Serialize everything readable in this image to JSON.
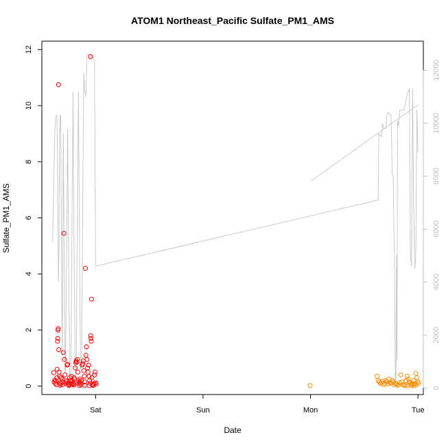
{
  "chart_data": {
    "type": "scatter",
    "title": "ATOM1 Northeast_Pacific Sulfate_PM1_AMS",
    "xlabel": "Date",
    "ylabel": "Sulfate_PM1_AMS",
    "xlim": [
      -0.5,
      3.05
    ],
    "ylim": [
      -0.3,
      12.3
    ],
    "y2lim": [
      -250,
      13100
    ],
    "x_ticks": [
      {
        "label": "Sat",
        "value": 0
      },
      {
        "label": "Sun",
        "value": 1
      },
      {
        "label": "Mon",
        "value": 2
      },
      {
        "label": "Tue",
        "value": 3
      }
    ],
    "y_ticks": [
      0,
      2,
      4,
      6,
      8,
      10,
      12
    ],
    "y2_ticks": [
      0,
      2000,
      4000,
      6000,
      8000,
      10000,
      12000
    ],
    "colors": {
      "series1": "#ff0000",
      "series2": "#ff8c00",
      "altitude": "#c8c8c8"
    },
    "series": [
      {
        "color": "#ff0000",
        "points": [
          [
            -0.39,
            0.48
          ],
          [
            -0.385,
            0.15
          ],
          [
            -0.38,
            0.22
          ],
          [
            -0.375,
            0.1
          ],
          [
            -0.37,
            0.18
          ],
          [
            -0.365,
            0.05
          ],
          [
            -0.36,
            0.3
          ],
          [
            -0.358,
            0.6
          ],
          [
            -0.355,
            1.6
          ],
          [
            -0.352,
            1.7
          ],
          [
            -0.35,
            2.0
          ],
          [
            -0.347,
            2.05
          ],
          [
            -0.345,
            10.75
          ],
          [
            -0.342,
            1.3
          ],
          [
            -0.34,
            0.5
          ],
          [
            -0.335,
            0.35
          ],
          [
            -0.33,
            0.12
          ],
          [
            -0.325,
            0.08
          ],
          [
            -0.32,
            0.3
          ],
          [
            -0.315,
            0.15
          ],
          [
            -0.31,
            0.25
          ],
          [
            -0.305,
            0.05
          ],
          [
            -0.3,
            1.2
          ],
          [
            -0.295,
            5.45
          ],
          [
            -0.29,
            0.95
          ],
          [
            -0.285,
            0.4
          ],
          [
            -0.28,
            0.1
          ],
          [
            -0.275,
            0.2
          ],
          [
            -0.27,
            0.15
          ],
          [
            -0.265,
            0.75
          ],
          [
            -0.26,
            0.78
          ],
          [
            -0.255,
            0.08
          ],
          [
            -0.25,
            0.12
          ],
          [
            -0.245,
            0.05
          ],
          [
            -0.24,
            0.3
          ],
          [
            -0.235,
            0.2
          ],
          [
            -0.23,
            0.1
          ],
          [
            -0.225,
            0.35
          ],
          [
            -0.22,
            0.05
          ],
          [
            -0.215,
            0.18
          ],
          [
            -0.21,
            0.1
          ],
          [
            -0.205,
            0.08
          ],
          [
            -0.2,
            0.3
          ],
          [
            -0.195,
            0.25
          ],
          [
            -0.19,
            0.65
          ],
          [
            -0.185,
            0.85
          ],
          [
            -0.18,
            0.9
          ],
          [
            -0.175,
            0.85
          ],
          [
            -0.17,
            0.95
          ],
          [
            -0.165,
            0.5
          ],
          [
            -0.16,
            0.2
          ],
          [
            -0.155,
            0.1
          ],
          [
            -0.15,
            0.15
          ],
          [
            -0.145,
            0.25
          ],
          [
            -0.14,
            0.1
          ],
          [
            -0.135,
            0.05
          ],
          [
            -0.13,
            0.2
          ],
          [
            -0.125,
            0.75
          ],
          [
            -0.12,
            0.8
          ],
          [
            -0.115,
            0.9
          ],
          [
            -0.11,
            0.55
          ],
          [
            -0.105,
            0.35
          ],
          [
            -0.1,
            0.15
          ],
          [
            -0.095,
            4.2
          ],
          [
            -0.09,
            1.1
          ],
          [
            -0.085,
            1.4
          ],
          [
            -0.08,
            0.95
          ],
          [
            -0.075,
            0.65
          ],
          [
            -0.07,
            0.5
          ],
          [
            -0.065,
            0.75
          ],
          [
            -0.06,
            0.35
          ],
          [
            -0.055,
            0.2
          ],
          [
            -0.05,
            0.1
          ],
          [
            -0.047,
            11.75
          ],
          [
            -0.045,
            1.8
          ],
          [
            -0.043,
            1.7
          ],
          [
            -0.04,
            1.6
          ],
          [
            -0.038,
            3.1
          ],
          [
            -0.035,
            0.3
          ],
          [
            -0.03,
            0.05
          ],
          [
            -0.025,
            0.02
          ],
          [
            -0.02,
            0.05
          ],
          [
            -0.015,
            0.1
          ],
          [
            -0.01,
            0.4
          ],
          [
            -0.005,
            0.5
          ],
          [
            0.0,
            0.12
          ],
          [
            0.005,
            0.08
          ],
          [
            -0.33,
            0.03
          ],
          [
            -0.25,
            0.02
          ],
          [
            -0.2,
            0.04
          ],
          [
            -0.15,
            0.02
          ],
          [
            -0.1,
            0.03
          ],
          [
            -0.06,
            0.02
          ]
        ]
      },
      {
        "color": "#ff8c00",
        "points": [
          [
            1.995,
            0.02
          ],
          [
            2.62,
            0.35
          ],
          [
            2.63,
            0.2
          ],
          [
            2.64,
            0.15
          ],
          [
            2.65,
            0.1
          ],
          [
            2.66,
            0.12
          ],
          [
            2.67,
            0.18
          ],
          [
            2.68,
            0.05
          ],
          [
            2.69,
            0.1
          ],
          [
            2.7,
            0.2
          ],
          [
            2.71,
            0.15
          ],
          [
            2.72,
            0.08
          ],
          [
            2.73,
            0.25
          ],
          [
            2.74,
            0.12
          ],
          [
            2.75,
            0.1
          ],
          [
            2.76,
            0.2
          ],
          [
            2.77,
            0.15
          ],
          [
            2.78,
            0.05
          ],
          [
            2.79,
            0.1
          ],
          [
            2.8,
            0.08
          ],
          [
            2.81,
            0.03
          ],
          [
            2.82,
            0.05
          ],
          [
            2.83,
            0.12
          ],
          [
            2.84,
            0.4
          ],
          [
            2.85,
            0.15
          ],
          [
            2.86,
            0.05
          ],
          [
            2.87,
            0.03
          ],
          [
            2.88,
            0.02
          ],
          [
            2.89,
            0.2
          ],
          [
            2.9,
            0.35
          ],
          [
            2.91,
            0.25
          ],
          [
            2.92,
            0.15
          ],
          [
            2.93,
            0.05
          ],
          [
            2.94,
            0.1
          ],
          [
            2.95,
            0.08
          ],
          [
            2.96,
            0.2
          ],
          [
            2.97,
            0.1
          ],
          [
            2.98,
            0.45
          ],
          [
            2.99,
            0.3
          ],
          [
            3.0,
            0.15
          ],
          [
            3.005,
            0.1
          ],
          [
            2.985,
            0.05
          ],
          [
            2.965,
            0.02
          ],
          [
            2.945,
            0.03
          ],
          [
            2.925,
            0.12
          ],
          [
            2.905,
            0.02
          ]
        ]
      }
    ],
    "altitude_series": {
      "color": "#c8c8c8",
      "points": [
        [
          -0.4,
          5500
        ],
        [
          -0.38,
          9600
        ],
        [
          -0.37,
          10300
        ],
        [
          -0.36,
          10300
        ],
        [
          -0.355,
          9000
        ],
        [
          -0.35,
          6000
        ],
        [
          -0.345,
          4000
        ],
        [
          -0.34,
          5500
        ],
        [
          -0.335,
          9500
        ],
        [
          -0.33,
          10300
        ],
        [
          -0.325,
          10300
        ],
        [
          -0.32,
          7000
        ],
        [
          -0.315,
          3500
        ],
        [
          -0.31,
          1200
        ],
        [
          -0.305,
          5000
        ],
        [
          -0.3,
          9600
        ],
        [
          -0.29,
          3800
        ],
        [
          -0.285,
          600
        ],
        [
          -0.28,
          700
        ],
        [
          -0.27,
          5000
        ],
        [
          -0.26,
          9800
        ],
        [
          -0.25,
          4200
        ],
        [
          -0.24,
          500
        ],
        [
          -0.23,
          600
        ],
        [
          -0.22,
          6000
        ],
        [
          -0.21,
          11200
        ],
        [
          -0.2,
          5000
        ],
        [
          -0.19,
          600
        ],
        [
          -0.18,
          550
        ],
        [
          -0.17,
          6500
        ],
        [
          -0.16,
          11200
        ],
        [
          -0.15,
          5500
        ],
        [
          -0.14,
          700
        ],
        [
          -0.13,
          900
        ],
        [
          -0.12,
          7000
        ],
        [
          -0.11,
          11900
        ],
        [
          -0.1,
          11200
        ],
        [
          -0.09,
          11000
        ],
        [
          -0.08,
          12600
        ],
        [
          -0.05,
          12600
        ],
        [
          -0.04,
          12500
        ],
        [
          -0.03,
          12500
        ],
        [
          -0.01,
          12400
        ],
        [
          0.0,
          4600
        ],
        [
          2.0,
          6500
        ],
        [
          2.63,
          7100
        ],
        [
          2.635,
          9600
        ],
        [
          2.66,
          9500
        ],
        [
          2.67,
          10000
        ],
        [
          2.68,
          9800
        ],
        [
          2.7,
          9800
        ],
        [
          2.71,
          10300
        ],
        [
          2.72,
          10400
        ],
        [
          2.75,
          10300
        ],
        [
          2.76,
          8100
        ],
        [
          2.77,
          8000
        ],
        [
          2.78,
          5000
        ],
        [
          2.79,
          200
        ],
        [
          2.795,
          300
        ],
        [
          2.8,
          5000
        ],
        [
          2.805,
          1000
        ],
        [
          2.81,
          10100
        ],
        [
          2.82,
          9900
        ],
        [
          2.83,
          10500
        ],
        [
          2.87,
          10500
        ],
        [
          2.9,
          11100
        ],
        [
          2.92,
          11300
        ],
        [
          2.93,
          5000
        ],
        [
          2.94,
          4600
        ],
        [
          2.95,
          11300
        ],
        [
          2.96,
          7000
        ],
        [
          2.97,
          4500
        ],
        [
          2.98,
          5000
        ],
        [
          2.99,
          10500
        ],
        [
          3.0,
          8900
        ]
      ],
      "segment2": [
        [
          2.0,
          7800
        ],
        [
          3.0,
          10700
        ]
      ]
    }
  }
}
